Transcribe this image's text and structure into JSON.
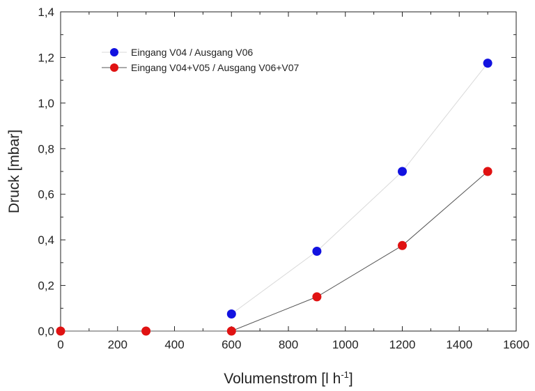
{
  "chart_data": {
    "type": "scatter",
    "title": "",
    "xlabel": "Volumenstrom [l h",
    "xlabel_superscript": "-1",
    "xlabel_suffix": "]",
    "ylabel": "Druck [mbar]",
    "xlim": [
      0,
      1600
    ],
    "ylim": [
      0,
      1.4
    ],
    "x_ticks": [
      "0",
      "200",
      "400",
      "600",
      "800",
      "1000",
      "1200",
      "1400",
      "1600"
    ],
    "y_ticks": [
      "0,0",
      "0,2",
      "0,4",
      "0,6",
      "0,8",
      "1,0",
      "1,2",
      "1,4"
    ],
    "grid": false,
    "legend_position": "top-left",
    "series": [
      {
        "name": "Eingang V04 / Ausgang V06",
        "color": "#1212e0",
        "line_color": "#d9d9d9",
        "x": [
          600,
          900,
          1200,
          1500
        ],
        "y": [
          0.075,
          0.35,
          0.7,
          1.175
        ]
      },
      {
        "name": "Eingang V04+V05 / Ausgang V06+V07",
        "color": "#e01212",
        "line_color": "#555555",
        "x": [
          0,
          300,
          600,
          900,
          1200,
          1500
        ],
        "y": [
          0.0,
          0.0,
          0.0,
          0.15,
          0.375,
          0.7
        ]
      }
    ]
  }
}
